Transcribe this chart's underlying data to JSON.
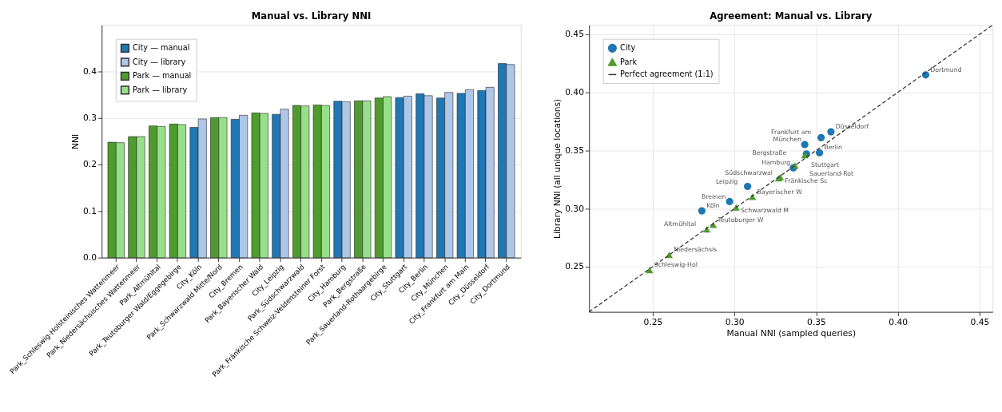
{
  "chart_data": [
    {
      "type": "bar",
      "title": "Manual vs. Library NNI",
      "ylabel": "NNI",
      "categories": [
        "Park_Schleswig-Holsteinisches Wattenmeer",
        "Park_Niedersächsisches Wattenmeer",
        "Park_Altmühltal",
        "Park_Teutoburger Wald/Eggegebirge",
        "City_Köln",
        "Park_Schwarzwald Mitte/Nord",
        "City_Bremen",
        "Park_Bayerischer Wald",
        "City_Leipzig",
        "Park_Südschwarzwald",
        "Park_Fränkische Schweiz-Veldensteiner Forst",
        "City_Hamburg",
        "Park_Bergstraße",
        "Park_Sauerland-Rothaargebirge",
        "City_Stuttgart",
        "City_Berlin",
        "City_München",
        "City_Frankfurt am Main",
        "City_Düsseldorf",
        "City_Dortmund"
      ],
      "series": [
        {
          "name": "City — manual",
          "color": "#1f77b4",
          "values": [
            null,
            null,
            null,
            null,
            0.28,
            null,
            0.297,
            null,
            0.308,
            null,
            null,
            0.336,
            null,
            null,
            0.344,
            0.352,
            0.343,
            0.353,
            0.359,
            0.417
          ]
        },
        {
          "name": "City — library",
          "color": "#aec7e8",
          "values": [
            null,
            null,
            null,
            null,
            0.298,
            null,
            0.306,
            null,
            0.319,
            null,
            null,
            0.335,
            null,
            null,
            0.347,
            0.348,
            0.355,
            0.361,
            0.366,
            0.415
          ]
        },
        {
          "name": "Park — manual",
          "color": "#4e9c2e",
          "values": [
            0.248,
            0.26,
            0.283,
            0.287,
            null,
            0.301,
            null,
            0.311,
            null,
            0.327,
            0.328,
            null,
            0.337,
            0.343,
            null,
            null,
            null,
            null,
            null,
            null
          ]
        },
        {
          "name": "Park — library",
          "color": "#98df8a",
          "values": [
            0.247,
            0.26,
            0.282,
            0.286,
            null,
            0.301,
            null,
            0.31,
            null,
            0.326,
            0.327,
            null,
            0.337,
            0.346,
            null,
            null,
            null,
            null,
            null,
            null
          ]
        }
      ],
      "ylim": [
        0,
        0.5
      ],
      "yticks": [
        {
          "value": 0,
          "label": "0.0"
        },
        {
          "value": 0.1,
          "label": "0.1"
        },
        {
          "value": 0.2,
          "label": "0.2"
        },
        {
          "value": 0.3,
          "label": "0.3"
        },
        {
          "value": 0.4,
          "label": "0.4"
        }
      ],
      "grid": "y",
      "legend": "top left"
    },
    {
      "type": "scatter",
      "title": "Agreement: Manual vs. Library",
      "xlabel": "Manual NNI  (sampled queries)",
      "ylabel": "Library NNI  (all unique locations)",
      "series": [
        {
          "name": "City",
          "color": "#1f77b4",
          "marker": "circle",
          "x": [
            0.28,
            0.297,
            0.308,
            0.336,
            0.344,
            0.352,
            0.343,
            0.353,
            0.359,
            0.417
          ],
          "values": [
            0.298,
            0.306,
            0.319,
            0.335,
            0.347,
            0.348,
            0.355,
            0.361,
            0.366,
            0.415
          ]
        },
        {
          "name": "Park",
          "color": "#4e9c2e",
          "marker": "triangle",
          "x": [
            0.248,
            0.26,
            0.283,
            0.287,
            0.301,
            0.311,
            0.327,
            0.328,
            0.337,
            0.343
          ],
          "values": [
            0.247,
            0.26,
            0.282,
            0.286,
            0.301,
            0.31,
            0.326,
            0.327,
            0.337,
            0.346
          ]
        },
        {
          "name": "Perfect agreement (1:1)",
          "type": "line",
          "color": "#333333",
          "line_style": "dashed",
          "marker": "none",
          "x": [
            0.211,
            0.458
          ],
          "values": [
            0.211,
            0.458
          ]
        }
      ],
      "annotations": [
        {
          "text": "Köln",
          "x": 0.28,
          "y": 0.298
        },
        {
          "text": "Bremen",
          "x": 0.297,
          "y": 0.306
        },
        {
          "text": "Leipzig",
          "x": 0.308,
          "y": 0.319
        },
        {
          "text": "Hamburg",
          "x": 0.336,
          "y": 0.335
        },
        {
          "text": "Stuttgart",
          "x": 0.344,
          "y": 0.347
        },
        {
          "text": "Berlin",
          "x": 0.352,
          "y": 0.348
        },
        {
          "text": "München",
          "x": 0.343,
          "y": 0.355
        },
        {
          "text": "Frankfurt am",
          "x": 0.353,
          "y": 0.361
        },
        {
          "text": "Düsseldorf",
          "x": 0.359,
          "y": 0.366
        },
        {
          "text": "Dortmund",
          "x": 0.417,
          "y": 0.415
        },
        {
          "text": "Schleswig-Hol",
          "x": 0.248,
          "y": 0.247
        },
        {
          "text": "Niedersächsis",
          "x": 0.26,
          "y": 0.26
        },
        {
          "text": "Altmühltal",
          "x": 0.283,
          "y": 0.282
        },
        {
          "text": "Teutoburger W",
          "x": 0.287,
          "y": 0.286
        },
        {
          "text": "Schwarzwald M",
          "x": 0.301,
          "y": 0.301
        },
        {
          "text": "Bayerischer W",
          "x": 0.311,
          "y": 0.31
        },
        {
          "text": "Südschwarzwal",
          "x": 0.327,
          "y": 0.326
        },
        {
          "text": "Fränkische Sc",
          "x": 0.328,
          "y": 0.327
        },
        {
          "text": "Bergstraße",
          "x": 0.337,
          "y": 0.337
        },
        {
          "text": "Sauerland-Rot",
          "x": 0.343,
          "y": 0.346
        }
      ],
      "xlim": [
        0.211,
        0.458
      ],
      "ylim": [
        0.211,
        0.458
      ],
      "xticks": [
        {
          "value": 0.25,
          "label": "0.25"
        },
        {
          "value": 0.3,
          "label": "0.30"
        },
        {
          "value": 0.35,
          "label": "0.35"
        },
        {
          "value": 0.4,
          "label": "0.40"
        },
        {
          "value": 0.45,
          "label": "0.45"
        }
      ],
      "yticks": [
        {
          "value": 0.25,
          "label": "0.25"
        },
        {
          "value": 0.3,
          "label": "0.30"
        },
        {
          "value": 0.35,
          "label": "0.35"
        },
        {
          "value": 0.4,
          "label": "0.40"
        },
        {
          "value": 0.45,
          "label": "0.45"
        }
      ],
      "grid": true,
      "legend": "top left"
    }
  ]
}
